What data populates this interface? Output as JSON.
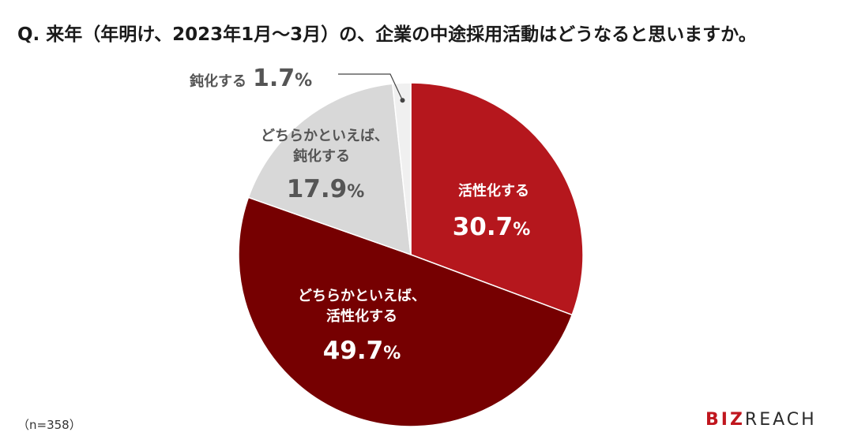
{
  "title": "Q. 来年（年明け、2023年1月～3月）の、企業の中途採用活動はどうなると思いますか。",
  "note": "（n=358）",
  "logo": {
    "part1": "BIZ",
    "part2": "REACH"
  },
  "colors": {
    "activate": "#b5171d",
    "somewhat_activate": "#760001",
    "somewhat_slow": "#d8d8d8",
    "slow": "#f0f0f0",
    "label_dark": "#555555",
    "leader": "#444444"
  },
  "chart_data": {
    "type": "pie",
    "title": "Q. 来年（年明け、2023年1月～3月）の、企業の中途採用活動はどうなると思いますか。",
    "unit": "%",
    "start": "12 o'clock",
    "direction": "clockwise",
    "slices": [
      {
        "label_lines": [
          "活性化する"
        ],
        "value": 30.7,
        "value_text": "30.7",
        "color": "#b5171d"
      },
      {
        "label_lines": [
          "どちらかといえば、",
          "活性化する"
        ],
        "value": 49.7,
        "value_text": "49.7",
        "color": "#760001"
      },
      {
        "label_lines": [
          "どちらかといえば、",
          "鈍化する"
        ],
        "value": 17.9,
        "value_text": "17.9",
        "color": "#d8d8d8"
      },
      {
        "label_lines": [
          "鈍化する"
        ],
        "value": 1.7,
        "value_text": "1.7",
        "color": "#f0f0f0"
      }
    ]
  }
}
